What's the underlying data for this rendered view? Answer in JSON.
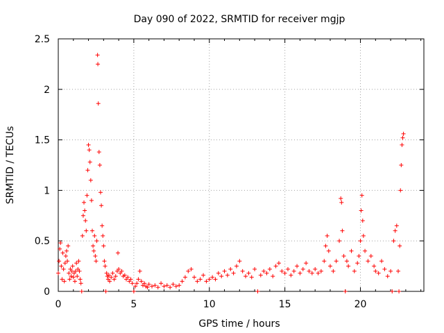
{
  "chart_data": {
    "type": "scatter",
    "title": "Day 090 of 2022, SRMTID for receiver mgjp",
    "xlabel": "GPS time / hours",
    "ylabel": "SRMTID / TECUs",
    "xlim": [
      0,
      24.2
    ],
    "ylim": [
      0,
      2.5
    ],
    "xticks": [
      0,
      5,
      10,
      15,
      20
    ],
    "xtick_labels": [
      "0",
      "5",
      "10",
      "15",
      "20"
    ],
    "yticks": [
      0,
      0.5,
      1,
      1.5,
      2,
      2.5
    ],
    "ytick_labels": [
      "0",
      "0.5",
      "1",
      "1.5",
      "2",
      "2.5"
    ],
    "grid": true,
    "marker": "+",
    "color": "#ff0000",
    "series": [
      {
        "name": "SRMTID",
        "points": [
          [
            0.0,
            0.18
          ],
          [
            0.05,
            0.3
          ],
          [
            0.1,
            0.42
          ],
          [
            0.15,
            0.48
          ],
          [
            0.2,
            0.25
          ],
          [
            0.25,
            0.12
          ],
          [
            0.3,
            0.38
          ],
          [
            0.35,
            0.22
          ],
          [
            0.4,
            0.1
          ],
          [
            0.45,
            0.28
          ],
          [
            0.5,
            0.35
          ],
          [
            0.55,
            0.4
          ],
          [
            0.6,
            0.3
          ],
          [
            0.65,
            0.45
          ],
          [
            0.7,
            0.18
          ],
          [
            0.75,
            0.12
          ],
          [
            0.8,
            0.22
          ],
          [
            0.85,
            0.15
          ],
          [
            0.9,
            0.2
          ],
          [
            0.95,
            0.25
          ],
          [
            1.0,
            0.14
          ],
          [
            1.05,
            0.18
          ],
          [
            1.1,
            0.1
          ],
          [
            1.15,
            0.2
          ],
          [
            1.2,
            0.28
          ],
          [
            1.25,
            0.15
          ],
          [
            1.3,
            0.22
          ],
          [
            1.35,
            0.3
          ],
          [
            1.4,
            0.2
          ],
          [
            1.45,
            0.12
          ],
          [
            1.5,
            0.08
          ],
          [
            1.55,
            0.0
          ],
          [
            1.6,
            0.55
          ],
          [
            1.65,
            0.75
          ],
          [
            1.7,
            0.88
          ],
          [
            1.75,
            0.8
          ],
          [
            1.8,
            0.7
          ],
          [
            1.85,
            0.6
          ],
          [
            1.9,
            0.95
          ],
          [
            1.95,
            1.2
          ],
          [
            2.0,
            1.45
          ],
          [
            2.05,
            1.4
          ],
          [
            2.1,
            1.28
          ],
          [
            2.15,
            1.1
          ],
          [
            2.2,
            0.9
          ],
          [
            2.25,
            0.6
          ],
          [
            2.3,
            0.45
          ],
          [
            2.35,
            0.4
          ],
          [
            2.4,
            0.55
          ],
          [
            2.45,
            0.35
          ],
          [
            2.5,
            0.3
          ],
          [
            2.55,
            0.5
          ],
          [
            2.6,
            2.34
          ],
          [
            2.62,
            2.25
          ],
          [
            2.65,
            1.86
          ],
          [
            2.7,
            1.38
          ],
          [
            2.75,
            1.25
          ],
          [
            2.8,
            0.98
          ],
          [
            2.85,
            0.85
          ],
          [
            2.9,
            0.65
          ],
          [
            2.95,
            0.55
          ],
          [
            3.0,
            0.45
          ],
          [
            3.05,
            0.3
          ],
          [
            3.1,
            0.25
          ],
          [
            3.15,
            0.0
          ],
          [
            3.2,
            0.18
          ],
          [
            3.25,
            0.15
          ],
          [
            3.3,
            0.12
          ],
          [
            3.35,
            0.16
          ],
          [
            3.4,
            0.1
          ],
          [
            3.5,
            0.14
          ],
          [
            3.6,
            0.18
          ],
          [
            3.7,
            0.12
          ],
          [
            3.8,
            0.15
          ],
          [
            3.9,
            0.2
          ],
          [
            3.95,
            0.38
          ],
          [
            4.0,
            0.22
          ],
          [
            4.1,
            0.18
          ],
          [
            4.2,
            0.2
          ],
          [
            4.3,
            0.15
          ],
          [
            4.4,
            0.16
          ],
          [
            4.5,
            0.12
          ],
          [
            4.6,
            0.14
          ],
          [
            4.7,
            0.1
          ],
          [
            4.8,
            0.12
          ],
          [
            4.9,
            0.08
          ],
          [
            5.0,
            0.0
          ],
          [
            5.1,
            0.05
          ],
          [
            5.2,
            0.08
          ],
          [
            5.3,
            0.12
          ],
          [
            5.4,
            0.2
          ],
          [
            5.5,
            0.1
          ],
          [
            5.6,
            0.06
          ],
          [
            5.7,
            0.08
          ],
          [
            5.8,
            0.05
          ],
          [
            5.9,
            0.04
          ],
          [
            6.0,
            0.07
          ],
          [
            6.2,
            0.05
          ],
          [
            6.4,
            0.06
          ],
          [
            6.6,
            0.04
          ],
          [
            6.8,
            0.08
          ],
          [
            7.0,
            0.05
          ],
          [
            7.2,
            0.06
          ],
          [
            7.4,
            0.04
          ],
          [
            7.6,
            0.07
          ],
          [
            7.8,
            0.05
          ],
          [
            8.0,
            0.06
          ],
          [
            8.2,
            0.1
          ],
          [
            8.4,
            0.14
          ],
          [
            8.6,
            0.2
          ],
          [
            8.8,
            0.22
          ],
          [
            9.0,
            0.14
          ],
          [
            9.2,
            0.1
          ],
          [
            9.4,
            0.12
          ],
          [
            9.6,
            0.16
          ],
          [
            9.8,
            0.1
          ],
          [
            10.0,
            0.12
          ],
          [
            10.2,
            0.14
          ],
          [
            10.4,
            0.12
          ],
          [
            10.6,
            0.18
          ],
          [
            10.8,
            0.15
          ],
          [
            11.0,
            0.2
          ],
          [
            11.2,
            0.16
          ],
          [
            11.4,
            0.22
          ],
          [
            11.6,
            0.18
          ],
          [
            11.8,
            0.25
          ],
          [
            12.0,
            0.3
          ],
          [
            12.2,
            0.2
          ],
          [
            12.4,
            0.15
          ],
          [
            12.6,
            0.18
          ],
          [
            12.8,
            0.14
          ],
          [
            13.0,
            0.22
          ],
          [
            13.2,
            0.0
          ],
          [
            13.4,
            0.16
          ],
          [
            13.6,
            0.2
          ],
          [
            13.8,
            0.18
          ],
          [
            14.0,
            0.22
          ],
          [
            14.2,
            0.15
          ],
          [
            14.4,
            0.25
          ],
          [
            14.6,
            0.28
          ],
          [
            14.8,
            0.2
          ],
          [
            15.0,
            0.18
          ],
          [
            15.2,
            0.22
          ],
          [
            15.4,
            0.16
          ],
          [
            15.6,
            0.2
          ],
          [
            15.8,
            0.25
          ],
          [
            16.0,
            0.18
          ],
          [
            16.2,
            0.22
          ],
          [
            16.4,
            0.28
          ],
          [
            16.6,
            0.2
          ],
          [
            16.8,
            0.18
          ],
          [
            17.0,
            0.22
          ],
          [
            17.2,
            0.18
          ],
          [
            17.4,
            0.2
          ],
          [
            17.6,
            0.3
          ],
          [
            17.7,
            0.45
          ],
          [
            17.8,
            0.55
          ],
          [
            17.9,
            0.4
          ],
          [
            18.0,
            0.25
          ],
          [
            18.2,
            0.2
          ],
          [
            18.4,
            0.3
          ],
          [
            18.6,
            0.5
          ],
          [
            18.7,
            0.92
          ],
          [
            18.75,
            0.88
          ],
          [
            18.8,
            0.6
          ],
          [
            18.9,
            0.35
          ],
          [
            19.0,
            0.0
          ],
          [
            19.1,
            0.3
          ],
          [
            19.2,
            0.25
          ],
          [
            19.4,
            0.4
          ],
          [
            19.6,
            0.2
          ],
          [
            19.8,
            0.28
          ],
          [
            19.9,
            0.35
          ],
          [
            20.0,
            0.5
          ],
          [
            20.05,
            0.8
          ],
          [
            20.1,
            0.95
          ],
          [
            20.15,
            0.7
          ],
          [
            20.2,
            0.55
          ],
          [
            20.3,
            0.4
          ],
          [
            20.5,
            0.3
          ],
          [
            20.7,
            0.35
          ],
          [
            20.9,
            0.25
          ],
          [
            21.0,
            0.2
          ],
          [
            21.2,
            0.18
          ],
          [
            21.4,
            0.3
          ],
          [
            21.6,
            0.22
          ],
          [
            21.8,
            0.15
          ],
          [
            22.0,
            0.2
          ],
          [
            22.1,
            0.0
          ],
          [
            22.2,
            0.5
          ],
          [
            22.3,
            0.6
          ],
          [
            22.4,
            0.65
          ],
          [
            22.5,
            0.2
          ],
          [
            22.55,
            0.0
          ],
          [
            22.6,
            0.45
          ],
          [
            22.65,
            1.0
          ],
          [
            22.7,
            1.25
          ],
          [
            22.75,
            1.45
          ],
          [
            22.8,
            1.52
          ],
          [
            22.85,
            1.56
          ]
        ]
      }
    ]
  }
}
